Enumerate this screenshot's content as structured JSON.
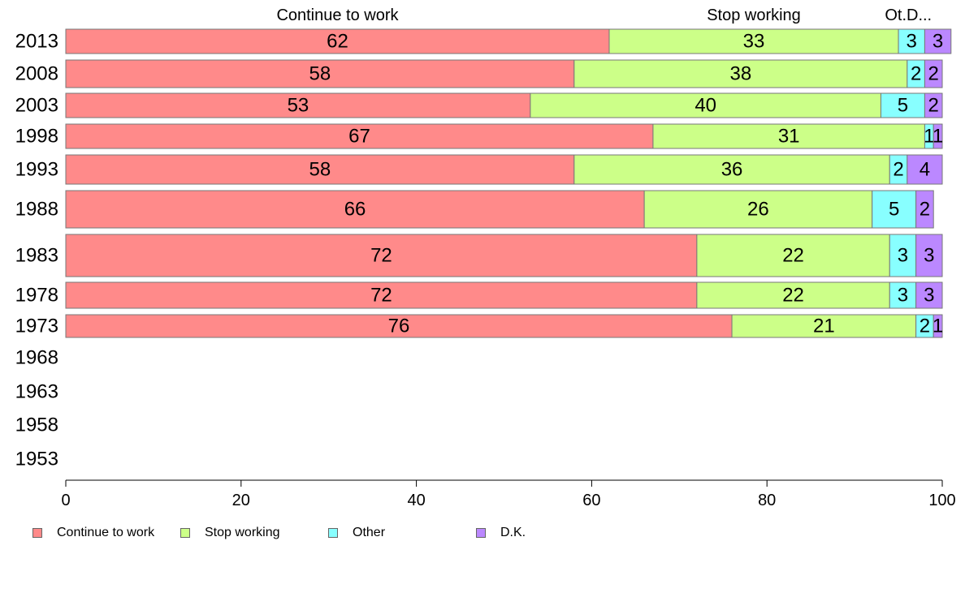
{
  "chart_data": {
    "type": "bar",
    "orientation": "horizontal",
    "stacked": true,
    "categories": [
      "2013",
      "2008",
      "2003",
      "1998",
      "1993",
      "1988",
      "1983",
      "1978",
      "1973",
      "1968",
      "1963",
      "1958",
      "1953"
    ],
    "series": [
      {
        "name": "Continue to work",
        "color": "#ff8a8a",
        "values": [
          62,
          58,
          53,
          67,
          58,
          66,
          72,
          72,
          76,
          null,
          null,
          null,
          null
        ]
      },
      {
        "name": "Stop working",
        "color": "#ccff88",
        "values": [
          33,
          38,
          40,
          31,
          36,
          26,
          22,
          22,
          21,
          null,
          null,
          null,
          null
        ]
      },
      {
        "name": "Other",
        "color": "#88ffff",
        "values": [
          3,
          2,
          5,
          1,
          2,
          5,
          3,
          3,
          2,
          null,
          null,
          null,
          null
        ]
      },
      {
        "name": "D.K.",
        "color": "#bb88ff",
        "values": [
          3,
          2,
          2,
          1,
          4,
          2,
          3,
          3,
          1,
          null,
          null,
          null,
          null
        ]
      }
    ],
    "top_labels": [
      "Continue to work",
      "Stop working",
      "Ot.",
      "D..."
    ],
    "xlim": [
      0,
      100
    ],
    "xticks": [
      0,
      20,
      40,
      60,
      80,
      100
    ],
    "grid": false,
    "legend_position": "bottom-left"
  }
}
